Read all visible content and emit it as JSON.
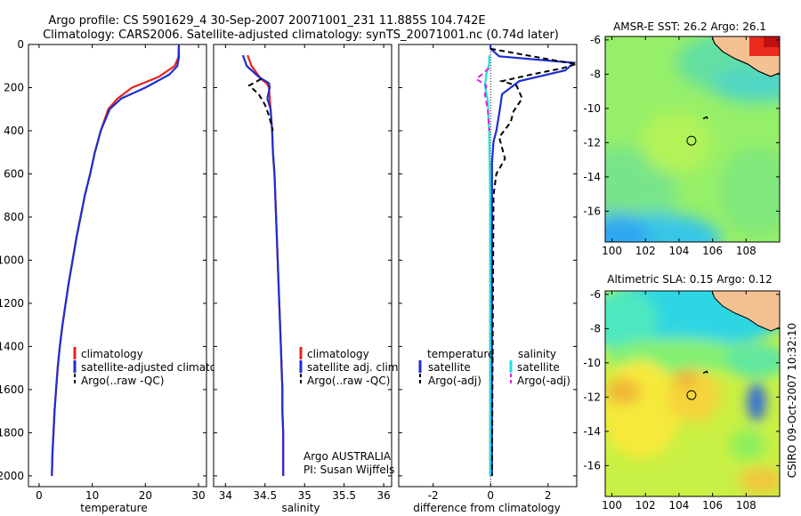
{
  "header": {
    "line1": "Argo profile: CS 5901629_4 30-Sep-2007 20071001_231 11.885S 104.742E",
    "line2": "Climatology: CARS2006. Satellite-adjusted climatology: synTS_20071001.nc (0.74d later)"
  },
  "footer": {
    "stamp": "CSIRO 09-Oct-2007 10:32:10"
  },
  "colors": {
    "climatology": "#e8231e",
    "satellite": "#1d2ed1",
    "argo": "#000000",
    "satellite_salinity": "#22e0e0",
    "argo_salinity": "#dd22dd",
    "land": "#f4c193"
  },
  "chart_data": [
    {
      "type": "line",
      "xlabel": "temperature",
      "ylim": [
        2050,
        0
      ],
      "xlim": [
        -2,
        31.5
      ],
      "yticks": [
        0,
        200,
        400,
        600,
        800,
        1000,
        1200,
        1400,
        1600,
        1800,
        2000
      ],
      "xticks": [
        0,
        10,
        20,
        30
      ],
      "legend": [
        "climatology",
        "satellite-adjusted climatology",
        "Argo(..raw -QC)"
      ],
      "series": [
        {
          "name": "climatology",
          "color": "climatology",
          "dash": false,
          "points": [
            [
              26.3,
              0
            ],
            [
              26.2,
              60
            ],
            [
              25.5,
              100
            ],
            [
              22.5,
              150
            ],
            [
              17.5,
              200
            ],
            [
              14.8,
              250
            ],
            [
              13,
              300
            ],
            [
              11.6,
              400
            ],
            [
              10.5,
              500
            ],
            [
              9.6,
              600
            ],
            [
              8.6,
              700
            ],
            [
              7.8,
              800
            ],
            [
              7,
              900
            ],
            [
              6.3,
              1000
            ],
            [
              5.6,
              1100
            ],
            [
              5,
              1200
            ],
            [
              4.4,
              1300
            ],
            [
              3.9,
              1400
            ],
            [
              3.5,
              1500
            ],
            [
              3.2,
              1600
            ],
            [
              2.9,
              1700
            ],
            [
              2.7,
              1800
            ],
            [
              2.5,
              1900
            ],
            [
              2.4,
              2000
            ]
          ]
        },
        {
          "name": "satellite-adjusted climatology",
          "color": "satellite",
          "dash": false,
          "points": [
            [
              26.3,
              0
            ],
            [
              26.3,
              60
            ],
            [
              26,
              100
            ],
            [
              24.5,
              140
            ],
            [
              20,
              200
            ],
            [
              15.5,
              250
            ],
            [
              13.3,
              300
            ],
            [
              11.6,
              400
            ],
            [
              10.5,
              500
            ],
            [
              9.6,
              600
            ],
            [
              8.6,
              700
            ],
            [
              7.8,
              800
            ],
            [
              7,
              900
            ],
            [
              6.3,
              1000
            ],
            [
              5.6,
              1100
            ],
            [
              5,
              1200
            ],
            [
              4.4,
              1300
            ],
            [
              3.9,
              1400
            ],
            [
              3.5,
              1500
            ],
            [
              3.2,
              1600
            ],
            [
              2.9,
              1700
            ],
            [
              2.7,
              1800
            ],
            [
              2.5,
              1900
            ],
            [
              2.4,
              2000
            ]
          ]
        },
        {
          "name": "Argo(..raw -QC)",
          "color": "argo",
          "dash": true,
          "points": []
        }
      ]
    },
    {
      "type": "line",
      "xlabel": "salinity",
      "ylim": [
        2050,
        0
      ],
      "xlim": [
        33.85,
        36.1
      ],
      "xticks": [
        34,
        34.5,
        35,
        35.5,
        36
      ],
      "xticklabels": [
        "34",
        "34.5",
        "35",
        "35.5",
        "36"
      ],
      "legend": [
        "climatology",
        "satellite adj. clim.",
        "Argo(..raw -QC)"
      ],
      "annotation": [
        "Argo AUSTRALIA",
        "PI: Susan Wijffels"
      ],
      "series": [
        {
          "name": "climatology",
          "color": "climatology",
          "dash": false,
          "points": [
            [
              34.28,
              50
            ],
            [
              34.33,
              100
            ],
            [
              34.45,
              160
            ],
            [
              34.52,
              180
            ],
            [
              34.55,
              200
            ],
            [
              34.57,
              300
            ],
            [
              34.59,
              400
            ],
            [
              34.6,
              500
            ],
            [
              34.62,
              600
            ],
            [
              34.63,
              700
            ],
            [
              34.64,
              800
            ],
            [
              34.65,
              900
            ],
            [
              34.66,
              1000
            ],
            [
              34.67,
              1100
            ],
            [
              34.68,
              1200
            ],
            [
              34.69,
              1300
            ],
            [
              34.7,
              1400
            ],
            [
              34.71,
              1500
            ],
            [
              34.72,
              1600
            ],
            [
              34.72,
              1700
            ],
            [
              34.73,
              1800
            ],
            [
              34.73,
              1900
            ],
            [
              34.73,
              2000
            ]
          ]
        },
        {
          "name": "satellite adj. clim.",
          "color": "satellite",
          "dash": false,
          "points": [
            [
              34.22,
              50
            ],
            [
              34.27,
              100
            ],
            [
              34.42,
              150
            ],
            [
              34.55,
              180
            ],
            [
              34.56,
              200
            ],
            [
              34.53,
              250
            ],
            [
              34.57,
              300
            ],
            [
              34.59,
              400
            ],
            [
              34.6,
              500
            ],
            [
              34.62,
              600
            ],
            [
              34.63,
              700
            ],
            [
              34.64,
              800
            ],
            [
              34.65,
              900
            ],
            [
              34.66,
              1000
            ],
            [
              34.67,
              1100
            ],
            [
              34.68,
              1200
            ],
            [
              34.69,
              1300
            ],
            [
              34.7,
              1400
            ],
            [
              34.71,
              1500
            ],
            [
              34.72,
              1600
            ],
            [
              34.72,
              1700
            ],
            [
              34.73,
              1800
            ],
            [
              34.73,
              1900
            ],
            [
              34.73,
              2000
            ]
          ]
        },
        {
          "name": "Argo(..raw -QC)",
          "color": "argo",
          "dash": true,
          "points": [
            [
              34.45,
              160
            ],
            [
              34.3,
              190
            ],
            [
              34.42,
              230
            ],
            [
              34.5,
              280
            ],
            [
              34.55,
              330
            ],
            [
              34.6,
              400
            ]
          ]
        }
      ]
    },
    {
      "type": "line",
      "xlabel": "difference from climatology",
      "ylim": [
        2050,
        0
      ],
      "xlim": [
        -3.2,
        3
      ],
      "xticks": [
        -2,
        0,
        2
      ],
      "legend_headers": [
        "temperature",
        "salinity"
      ],
      "legend": [
        [
          "satellite",
          "Argo(-adj)"
        ],
        [
          "satellite",
          "Argo(-adj)"
        ]
      ],
      "series": [
        {
          "name": "temperature satellite",
          "color": "satellite",
          "dash": false,
          "points": [
            [
              0,
              0
            ],
            [
              0,
              20
            ],
            [
              0.3,
              55
            ],
            [
              2.9,
              85
            ],
            [
              2.6,
              120
            ],
            [
              1,
              170
            ],
            [
              0.4,
              230
            ],
            [
              0.3,
              320
            ],
            [
              0.2,
              400
            ],
            [
              0.1,
              450
            ],
            [
              0.05,
              550
            ],
            [
              0.05,
              2000
            ]
          ]
        },
        {
          "name": "temperature Argo(-adj)",
          "color": "argo",
          "dash": true,
          "points": [
            [
              0,
              20
            ],
            [
              2.5,
              80
            ],
            [
              3,
              90
            ],
            [
              2.5,
              110
            ],
            [
              1.4,
              140
            ],
            [
              0.4,
              170
            ],
            [
              0.9,
              190
            ],
            [
              1.1,
              250
            ],
            [
              0.8,
              310
            ],
            [
              0.7,
              360
            ],
            [
              0.3,
              430
            ],
            [
              0.5,
              530
            ],
            [
              0.2,
              600
            ],
            [
              0.1,
              700
            ],
            [
              0.05,
              2000
            ]
          ]
        },
        {
          "name": "salinity satellite",
          "color": "satellite_salinity",
          "dash": false,
          "points": [
            [
              -0.05,
              50
            ],
            [
              -0.05,
              90
            ],
            [
              -0.15,
              140
            ],
            [
              -0.2,
              190
            ],
            [
              -0.1,
              260
            ],
            [
              -0.05,
              400
            ],
            [
              -0.02,
              700
            ],
            [
              -0.02,
              2000
            ]
          ]
        },
        {
          "name": "salinity Argo(-adj)",
          "color": "argo_salinity",
          "dash": true,
          "points": [
            [
              -0.05,
              110
            ],
            [
              -0.5,
              160
            ],
            [
              -0.15,
              190
            ],
            [
              -0.2,
              230
            ],
            [
              -0.1,
              300
            ],
            [
              -0.05,
              400
            ]
          ]
        }
      ]
    },
    {
      "type": "heatmap",
      "title": "AMSR-E SST: 26.2  Argo: 26.1",
      "xlim": [
        99.6,
        110.0
      ],
      "ylim": [
        -17.8,
        -5.8
      ],
      "xticks": [
        100,
        102,
        104,
        106,
        108
      ],
      "yticks": [
        -6,
        -8,
        -10,
        -12,
        -14,
        -16
      ],
      "argo_position": [
        104.742,
        -11.885
      ]
    },
    {
      "type": "heatmap",
      "title": "Altimetric SLA: 0.15  Argo: 0.12",
      "xlim": [
        99.6,
        110.0
      ],
      "ylim": [
        -17.8,
        -5.8
      ],
      "xticks": [
        100,
        102,
        104,
        106,
        108
      ],
      "yticks": [
        -6,
        -8,
        -10,
        -12,
        -14,
        -16
      ],
      "argo_position": [
        104.742,
        -11.885
      ]
    }
  ]
}
